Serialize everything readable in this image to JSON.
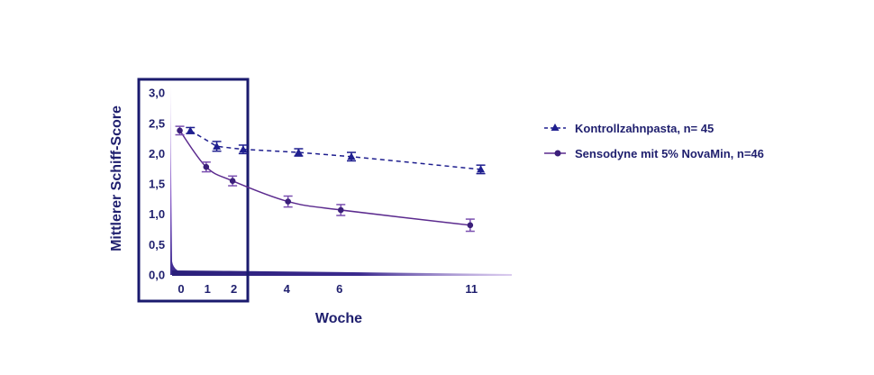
{
  "chart_data": {
    "type": "line",
    "xlabel": "Woche",
    "ylabel": "Mittlerer Schiff-Score",
    "xlim": [
      -0.8,
      12.2
    ],
    "ylim": [
      0,
      3.0
    ],
    "x_ticks": [
      "0",
      "1",
      "2",
      "4",
      "6",
      "11"
    ],
    "y_ticks": [
      "0,0",
      "0,5",
      "1,0",
      "1,5",
      "2,0",
      "2,5",
      "3,0"
    ],
    "grid": false,
    "legend_position": "right",
    "highlight_box": {
      "x_range": [
        -0.8,
        2.5
      ],
      "y_range": [
        0,
        3.0
      ]
    },
    "series": [
      {
        "name": "Kontrollzahnpasta, n= 45",
        "marker": "triangle",
        "line": "dashed",
        "color": "#1f1f8f",
        "x": [
          0.35,
          1.35,
          2.35,
          4.45,
          6.45,
          11.35
        ],
        "y": [
          2.38,
          2.12,
          2.07,
          2.02,
          1.95,
          1.74
        ],
        "error": [
          0.05,
          0.08,
          0.07,
          0.06,
          0.07,
          0.07
        ]
      },
      {
        "name": "Sensodyne mit 5% NovaMin, n=46",
        "marker": "circle",
        "line": "solid",
        "color": "#5b2a8e",
        "x": [
          -0.05,
          0.95,
          1.95,
          4.05,
          6.05,
          10.95
        ],
        "y": [
          2.38,
          1.78,
          1.55,
          1.21,
          1.07,
          0.82
        ],
        "error": [
          0.07,
          0.08,
          0.08,
          0.09,
          0.09,
          0.1
        ]
      }
    ]
  }
}
